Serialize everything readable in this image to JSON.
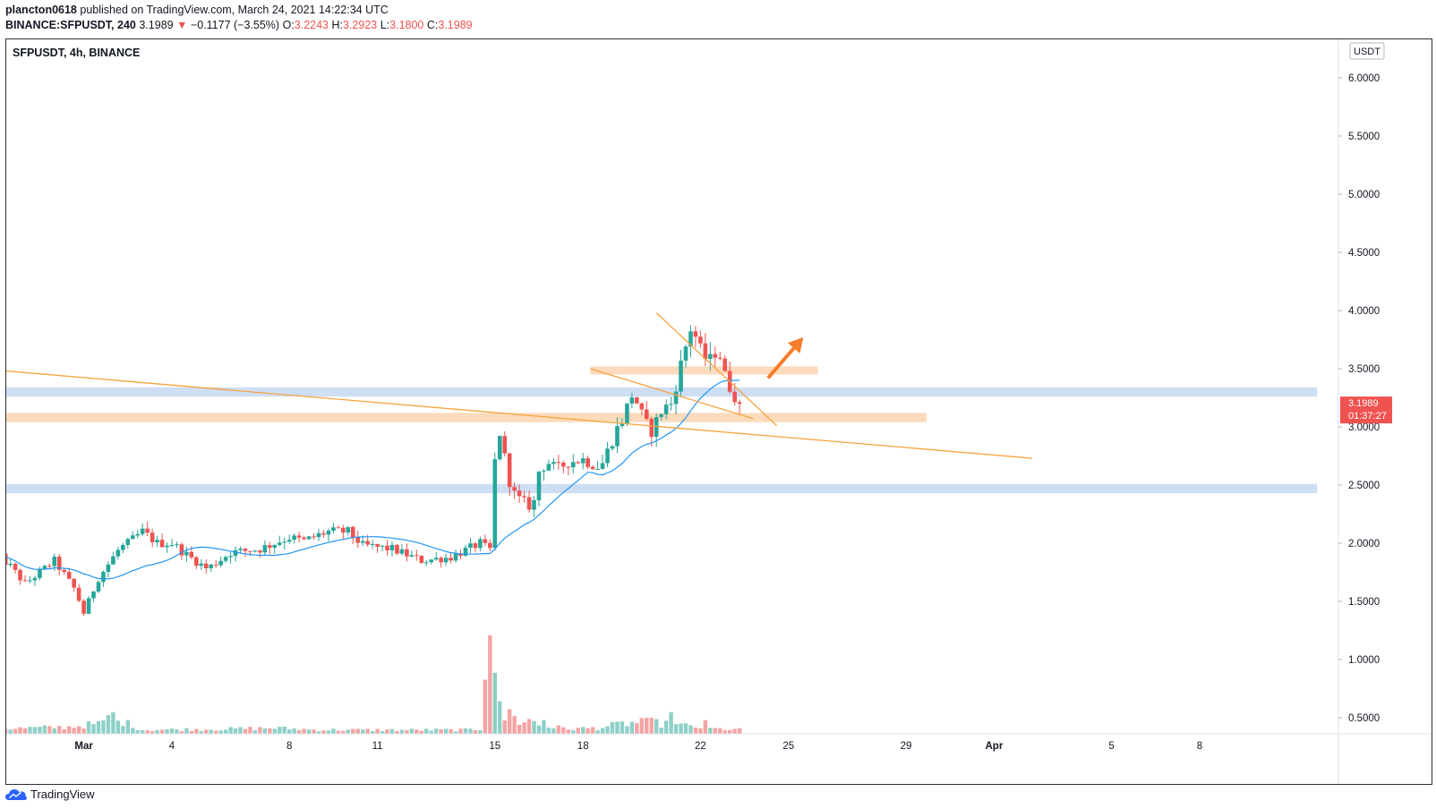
{
  "header": {
    "author": "plancton0618",
    "published_text": "published on TradingView.com, March 24, 2021 14:22:34 UTC",
    "symbol_line": "BINANCE:SFPUSDT, 240",
    "last": "3.1989",
    "arrow": "▼",
    "change": "−0.1177 (−3.55%)",
    "o_label": "O:",
    "o_value": "3.2243",
    "h_label": "H:",
    "h_value": "3.2923",
    "l_label": "L:",
    "l_value": "3.1800",
    "c_label": "C:",
    "c_value": "3.1989"
  },
  "footer": {
    "brand": "TradingView"
  },
  "colors": {
    "up": "#26a69a",
    "down": "#ef5350",
    "vol_up": "#8ed0c7",
    "vol_down": "#f4a3a3",
    "ma": "#2196f3",
    "trend": "#f7a23b",
    "zone_orange": "#fbd5b0",
    "zone_blue": "#c5d8f3",
    "arrow": "#f57c2a",
    "price_label": "#ef5350"
  },
  "chart_data": {
    "type": "candlestick",
    "title": "SFPUSDT, 4h, BINANCE",
    "exchange": "BINANCE",
    "timeframe": "4h",
    "currency_label": "USDT",
    "ylim": [
      0.4,
      6.25
    ],
    "y_ticks": [
      "6.0000",
      "5.5000",
      "5.0000",
      "4.5000",
      "4.0000",
      "3.5000",
      "3.0000",
      "2.5000",
      "2.0000",
      "1.5000",
      "1.0000",
      "0.5000"
    ],
    "x_ticks": [
      {
        "label": "Mar",
        "x": 3.0,
        "bold": true
      },
      {
        "label": "4",
        "x": 6.0
      },
      {
        "label": "8",
        "x": 10.0
      },
      {
        "label": "11",
        "x": 13.0
      },
      {
        "label": "15",
        "x": 17.0
      },
      {
        "label": "18",
        "x": 20.0
      },
      {
        "label": "22",
        "x": 24.0
      },
      {
        "label": "25",
        "x": 27.0
      },
      {
        "label": "29",
        "x": 31.0
      },
      {
        "label": "Apr",
        "x": 34.0,
        "bold": true
      },
      {
        "label": "5",
        "x": 38.0
      },
      {
        "label": "8",
        "x": 41.0
      }
    ],
    "x_unit": "day index since Feb 26 00:00 UTC (4h bars, 6 per day)",
    "last_price": {
      "value": 3.1989,
      "label": "3.1989",
      "countdown": "01:37:27"
    },
    "zones": [
      {
        "color": "orange",
        "y0": 3.45,
        "y1": 3.52,
        "x0": 20.25,
        "x1": 28.0
      },
      {
        "color": "blue",
        "y0": 3.26,
        "y1": 3.34,
        "x0": -1,
        "x1": 45
      },
      {
        "color": "orange",
        "y0": 3.04,
        "y1": 3.12,
        "x0": -1,
        "x1": 31.7
      },
      {
        "color": "blue",
        "y0": 2.43,
        "y1": 2.51,
        "x0": -1,
        "x1": 45
      }
    ],
    "trendlines": [
      {
        "x0": -0.1,
        "y0": 3.49,
        "x1": 35.3,
        "y1": 2.73
      },
      {
        "x0": 22.5,
        "y0": 3.98,
        "x1": 26.6,
        "y1": 3.01
      },
      {
        "x0": 20.25,
        "y0": 3.5,
        "x1": 25.8,
        "y1": 3.07
      }
    ],
    "arrow": {
      "x0": 26.3,
      "y0": 3.42,
      "x1": 27.5,
      "y1": 3.77
    },
    "anchors": [
      [
        0.0,
        1.91
      ],
      [
        0.5,
        1.8
      ],
      [
        1.0,
        1.65
      ],
      [
        2.0,
        1.85
      ],
      [
        2.7,
        1.6
      ],
      [
        3.0,
        1.4
      ],
      [
        3.5,
        1.7
      ],
      [
        4.2,
        1.95
      ],
      [
        4.5,
        2.0
      ],
      [
        5.0,
        2.1
      ],
      [
        5.5,
        2.0
      ],
      [
        6.0,
        2.0
      ],
      [
        6.5,
        1.9
      ],
      [
        7.2,
        1.78
      ],
      [
        8.0,
        1.92
      ],
      [
        9.0,
        1.95
      ],
      [
        10.0,
        2.05
      ],
      [
        10.5,
        2.02
      ],
      [
        11.3,
        2.1
      ],
      [
        12.0,
        2.1
      ],
      [
        12.5,
        1.98
      ],
      [
        13.5,
        1.95
      ],
      [
        14.5,
        1.85
      ],
      [
        15.5,
        1.88
      ],
      [
        16.5,
        2.0
      ],
      [
        16.83,
        1.93
      ],
      [
        17.0,
        2.7
      ],
      [
        17.2,
        3.0
      ],
      [
        17.4,
        2.6
      ],
      [
        17.7,
        2.4
      ],
      [
        18.0,
        2.35
      ],
      [
        18.3,
        2.3
      ],
      [
        18.5,
        2.62
      ],
      [
        18.8,
        2.7
      ],
      [
        19.1,
        2.63
      ],
      [
        19.5,
        2.7
      ],
      [
        20.0,
        2.72
      ],
      [
        20.6,
        2.65
      ],
      [
        21.1,
        2.95
      ],
      [
        21.4,
        3.1
      ],
      [
        21.7,
        3.3
      ],
      [
        22.0,
        3.1
      ],
      [
        22.3,
        2.95
      ],
      [
        22.7,
        3.15
      ],
      [
        23.0,
        3.2
      ],
      [
        23.4,
        3.6
      ],
      [
        23.7,
        3.88
      ],
      [
        24.0,
        3.65
      ],
      [
        24.3,
        3.55
      ],
      [
        24.6,
        3.7
      ],
      [
        24.8,
        3.45
      ],
      [
        25.1,
        3.3
      ],
      [
        25.4,
        3.2
      ]
    ],
    "volume_anchors": [
      [
        0.0,
        0.05
      ],
      [
        2.5,
        0.07
      ],
      [
        4.3,
        0.13
      ],
      [
        5.0,
        0.04
      ],
      [
        8.0,
        0.05
      ],
      [
        9.5,
        0.06
      ],
      [
        11.0,
        0.04
      ],
      [
        16.0,
        0.04
      ],
      [
        16.6,
        0.05
      ],
      [
        16.83,
        0.32
      ],
      [
        17.0,
        0.22
      ],
      [
        17.5,
        0.12
      ],
      [
        18.5,
        0.09
      ],
      [
        19.5,
        0.05
      ],
      [
        20.5,
        0.06
      ],
      [
        21.3,
        0.1
      ],
      [
        22.3,
        0.12
      ],
      [
        23.0,
        0.09
      ],
      [
        23.6,
        0.08
      ],
      [
        24.5,
        0.05
      ],
      [
        25.5,
        0.04
      ]
    ],
    "volume_spikes": [
      {
        "x": 16.83,
        "v": 1.0
      },
      {
        "x": 17.0,
        "v": 0.62
      },
      {
        "x": 17.17,
        "v": 0.33
      },
      {
        "x": 17.5,
        "v": 0.25
      },
      {
        "x": 17.67,
        "v": 0.18
      },
      {
        "x": 18.17,
        "v": 0.15
      },
      {
        "x": 18.33,
        "v": 0.13
      },
      {
        "x": 18.67,
        "v": 0.14
      },
      {
        "x": 3.83,
        "v": 0.19
      },
      {
        "x": 4.0,
        "v": 0.22
      },
      {
        "x": 22.0,
        "v": 0.16
      },
      {
        "x": 23.0,
        "v": 0.22
      },
      {
        "x": 24.17,
        "v": 0.14
      },
      {
        "x": 16.67,
        "v": 0.55
      }
    ],
    "ma_period": 20
  }
}
